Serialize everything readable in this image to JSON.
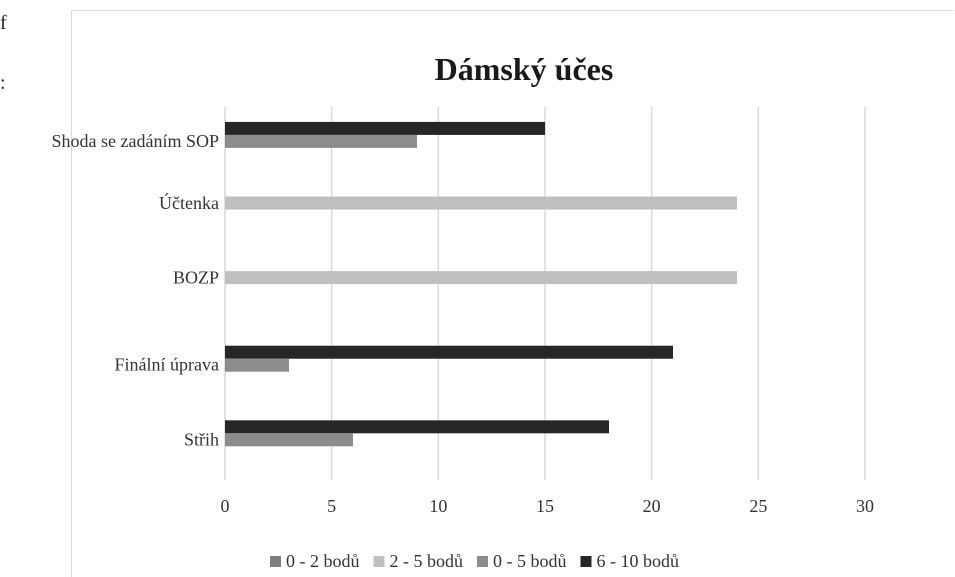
{
  "side_text": [
    "f",
    ":"
  ],
  "chart_data": {
    "type": "bar",
    "orientation": "horizontal",
    "title": "Dámský účes",
    "categories": [
      "Shoda se zadáním SOP",
      "Účtenka",
      "BOZP",
      "Finální úprava",
      "Střih"
    ],
    "series": [
      {
        "name": "0 - 2 bodů",
        "values": [
          0,
          0,
          0,
          0,
          0
        ],
        "color": "#7f7f7f"
      },
      {
        "name": "2 - 5 bodů",
        "values": [
          0,
          24,
          24,
          0,
          0
        ],
        "color": "#bfbfbf"
      },
      {
        "name": "0 - 5 bodů",
        "values": [
          9,
          0,
          0,
          3,
          6
        ],
        "color": "#8c8c8c"
      },
      {
        "name": "6 - 10 bodů",
        "values": [
          15,
          0,
          0,
          21,
          18
        ],
        "color": "#262626"
      }
    ],
    "xlim": [
      0,
      30
    ],
    "xticks": [
      0,
      5,
      10,
      15,
      20,
      25,
      30
    ],
    "grid": true,
    "legend_position": "bottom"
  }
}
